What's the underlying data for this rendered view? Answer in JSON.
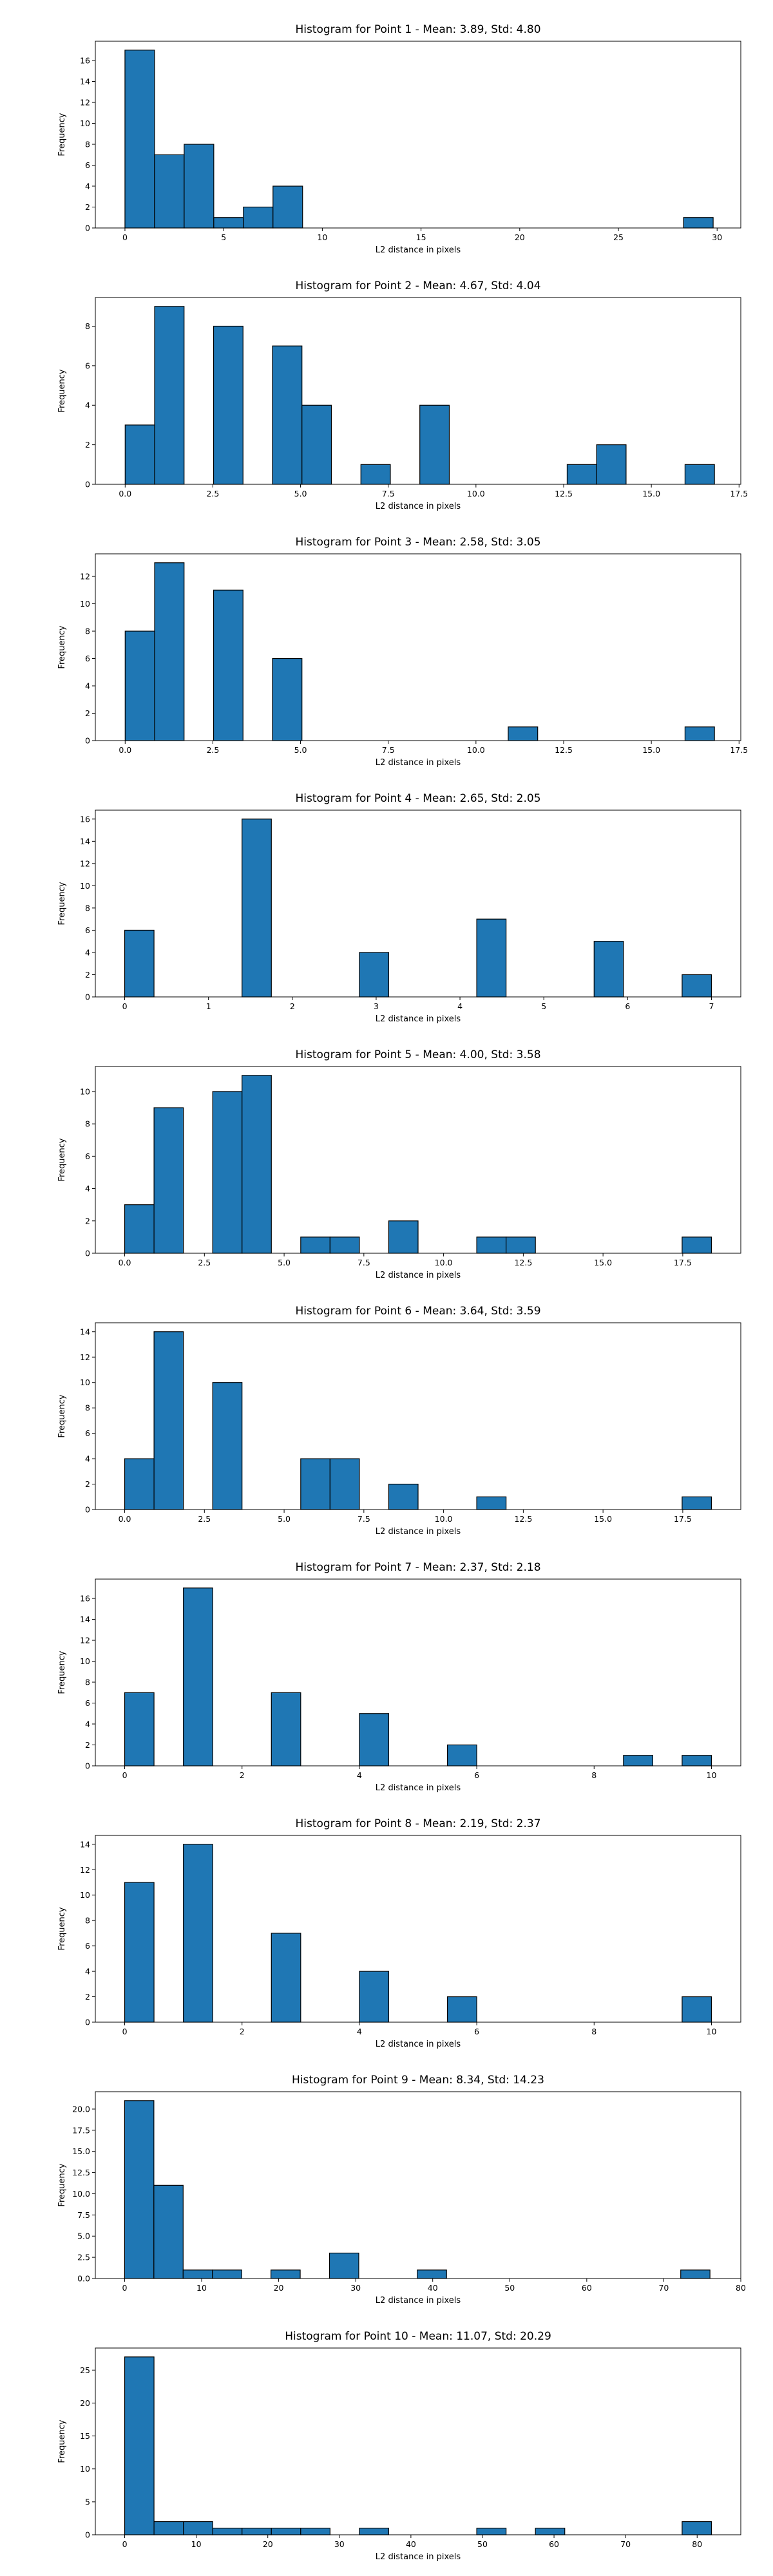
{
  "chart_data": [
    {
      "type": "bar",
      "title": "Histogram for Point 1 - Mean: 3.89, Std: 4.80",
      "xlabel": "L2 distance in pixels",
      "ylabel": "Frequency",
      "xlim": [
        -1.5,
        31.2
      ],
      "ylim": [
        0,
        17.85
      ],
      "xticks": [
        0,
        5,
        10,
        15,
        20,
        25,
        30
      ],
      "xtick_labels": [
        "0",
        "5",
        "10",
        "15",
        "20",
        "25",
        "30"
      ],
      "yticks": [
        0,
        2,
        4,
        6,
        8,
        10,
        12,
        14,
        16
      ],
      "ytick_labels": [
        "0",
        "2",
        "4",
        "6",
        "8",
        "10",
        "12",
        "14",
        "16"
      ],
      "bins": [
        {
          "x0": 0.0,
          "x1": 1.5,
          "count": 17
        },
        {
          "x0": 1.5,
          "x1": 3.0,
          "count": 7
        },
        {
          "x0": 3.0,
          "x1": 4.5,
          "count": 8
        },
        {
          "x0": 4.5,
          "x1": 6.0,
          "count": 1
        },
        {
          "x0": 6.0,
          "x1": 7.5,
          "count": 2
        },
        {
          "x0": 7.5,
          "x1": 9.0,
          "count": 4
        },
        {
          "x0": 28.3,
          "x1": 29.8,
          "count": 1
        }
      ]
    },
    {
      "type": "bar",
      "title": "Histogram for Point 2 - Mean: 4.67, Std: 4.04",
      "xlabel": "L2 distance in pixels",
      "ylabel": "Frequency",
      "xlim": [
        -0.85,
        17.55
      ],
      "ylim": [
        0,
        9.45
      ],
      "xticks": [
        0,
        2.5,
        5,
        7.5,
        10,
        12.5,
        15,
        17.5
      ],
      "xtick_labels": [
        "0.0",
        "2.5",
        "5.0",
        "7.5",
        "10.0",
        "12.5",
        "15.0",
        "17.5"
      ],
      "yticks": [
        0,
        2,
        4,
        6,
        8
      ],
      "ytick_labels": [
        "0",
        "2",
        "4",
        "6",
        "8"
      ],
      "bins": [
        {
          "x0": 0.0,
          "x1": 0.84,
          "count": 3
        },
        {
          "x0": 0.84,
          "x1": 1.68,
          "count": 9
        },
        {
          "x0": 2.52,
          "x1": 3.36,
          "count": 8
        },
        {
          "x0": 4.2,
          "x1": 5.04,
          "count": 7
        },
        {
          "x0": 5.04,
          "x1": 5.88,
          "count": 4
        },
        {
          "x0": 6.72,
          "x1": 7.56,
          "count": 1
        },
        {
          "x0": 8.4,
          "x1": 9.24,
          "count": 4
        },
        {
          "x0": 12.6,
          "x1": 13.44,
          "count": 1
        },
        {
          "x0": 13.44,
          "x1": 14.28,
          "count": 2
        },
        {
          "x0": 15.96,
          "x1": 16.8,
          "count": 1
        }
      ]
    },
    {
      "type": "bar",
      "title": "Histogram for Point 3 - Mean: 2.58, Std: 3.05",
      "xlabel": "L2 distance in pixels",
      "ylabel": "Frequency",
      "xlim": [
        -0.85,
        17.55
      ],
      "ylim": [
        0,
        13.65
      ],
      "xticks": [
        0,
        2.5,
        5,
        7.5,
        10,
        12.5,
        15,
        17.5
      ],
      "xtick_labels": [
        "0.0",
        "2.5",
        "5.0",
        "7.5",
        "10.0",
        "12.5",
        "15.0",
        "17.5"
      ],
      "yticks": [
        0,
        2,
        4,
        6,
        8,
        10,
        12
      ],
      "ytick_labels": [
        "0",
        "2",
        "4",
        "6",
        "8",
        "10",
        "12"
      ],
      "bins": [
        {
          "x0": 0.0,
          "x1": 0.84,
          "count": 8
        },
        {
          "x0": 0.84,
          "x1": 1.68,
          "count": 13
        },
        {
          "x0": 2.52,
          "x1": 3.36,
          "count": 11
        },
        {
          "x0": 4.2,
          "x1": 5.04,
          "count": 6
        },
        {
          "x0": 10.92,
          "x1": 11.76,
          "count": 1
        },
        {
          "x0": 15.96,
          "x1": 16.8,
          "count": 1
        }
      ]
    },
    {
      "type": "bar",
      "title": "Histogram for Point 4 - Mean: 2.65, Std: 2.05",
      "xlabel": "L2 distance in pixels",
      "ylabel": "Frequency",
      "xlim": [
        -0.35,
        7.35
      ],
      "ylim": [
        0,
        16.8
      ],
      "xticks": [
        0,
        1,
        2,
        3,
        4,
        5,
        6,
        7
      ],
      "xtick_labels": [
        "0",
        "1",
        "2",
        "3",
        "4",
        "5",
        "6",
        "7"
      ],
      "yticks": [
        0,
        2,
        4,
        6,
        8,
        10,
        12,
        14,
        16
      ],
      "ytick_labels": [
        "0",
        "2",
        "4",
        "6",
        "8",
        "10",
        "12",
        "14",
        "16"
      ],
      "bins": [
        {
          "x0": 0.0,
          "x1": 0.35,
          "count": 6
        },
        {
          "x0": 1.4,
          "x1": 1.75,
          "count": 16
        },
        {
          "x0": 2.8,
          "x1": 3.15,
          "count": 4
        },
        {
          "x0": 4.2,
          "x1": 4.55,
          "count": 7
        },
        {
          "x0": 5.6,
          "x1": 5.95,
          "count": 5
        },
        {
          "x0": 6.65,
          "x1": 7.0,
          "count": 2
        }
      ]
    },
    {
      "type": "bar",
      "title": "Histogram for Point 5 - Mean: 4.00, Std: 3.58",
      "xlabel": "L2 distance in pixels",
      "ylabel": "Frequency",
      "xlim": [
        -0.92,
        19.32
      ],
      "ylim": [
        0,
        11.55
      ],
      "xticks": [
        0,
        2.5,
        5,
        7.5,
        10,
        12.5,
        15,
        17.5
      ],
      "xtick_labels": [
        "0.0",
        "2.5",
        "5.0",
        "7.5",
        "10.0",
        "12.5",
        "15.0",
        "17.5"
      ],
      "yticks": [
        0,
        2,
        4,
        6,
        8,
        10
      ],
      "ytick_labels": [
        "0",
        "2",
        "4",
        "6",
        "8",
        "10"
      ],
      "bins": [
        {
          "x0": 0.0,
          "x1": 0.92,
          "count": 3
        },
        {
          "x0": 0.92,
          "x1": 1.84,
          "count": 9
        },
        {
          "x0": 2.76,
          "x1": 3.68,
          "count": 10
        },
        {
          "x0": 3.68,
          "x1": 4.6,
          "count": 11
        },
        {
          "x0": 5.52,
          "x1": 6.44,
          "count": 1
        },
        {
          "x0": 6.44,
          "x1": 7.36,
          "count": 1
        },
        {
          "x0": 8.28,
          "x1": 9.2,
          "count": 2
        },
        {
          "x0": 11.04,
          "x1": 11.96,
          "count": 1
        },
        {
          "x0": 11.96,
          "x1": 12.88,
          "count": 1
        },
        {
          "x0": 17.48,
          "x1": 18.4,
          "count": 1
        }
      ]
    },
    {
      "type": "bar",
      "title": "Histogram for Point 6 - Mean: 3.64, Std: 3.59",
      "xlabel": "L2 distance in pixels",
      "ylabel": "Frequency",
      "xlim": [
        -0.92,
        19.32
      ],
      "ylim": [
        0,
        14.7
      ],
      "xticks": [
        0,
        2.5,
        5,
        7.5,
        10,
        12.5,
        15,
        17.5
      ],
      "xtick_labels": [
        "0.0",
        "2.5",
        "5.0",
        "7.5",
        "10.0",
        "12.5",
        "15.0",
        "17.5"
      ],
      "yticks": [
        0,
        2,
        4,
        6,
        8,
        10,
        12,
        14
      ],
      "ytick_labels": [
        "0",
        "2",
        "4",
        "6",
        "8",
        "10",
        "12",
        "14"
      ],
      "bins": [
        {
          "x0": 0.0,
          "x1": 0.92,
          "count": 4
        },
        {
          "x0": 0.92,
          "x1": 1.84,
          "count": 14
        },
        {
          "x0": 2.76,
          "x1": 3.68,
          "count": 10
        },
        {
          "x0": 5.52,
          "x1": 6.44,
          "count": 4
        },
        {
          "x0": 6.44,
          "x1": 7.36,
          "count": 4
        },
        {
          "x0": 8.28,
          "x1": 9.2,
          "count": 2
        },
        {
          "x0": 11.04,
          "x1": 11.96,
          "count": 1
        },
        {
          "x0": 17.48,
          "x1": 18.4,
          "count": 1
        }
      ]
    },
    {
      "type": "bar",
      "title": "Histogram for Point 7 - Mean: 2.37, Std: 2.18",
      "xlabel": "L2 distance in pixels",
      "ylabel": "Frequency",
      "xlim": [
        -0.5,
        10.5
      ],
      "ylim": [
        0,
        17.85
      ],
      "xticks": [
        0,
        2,
        4,
        6,
        8,
        10
      ],
      "xtick_labels": [
        "0",
        "2",
        "4",
        "6",
        "8",
        "10"
      ],
      "yticks": [
        0,
        2,
        4,
        6,
        8,
        10,
        12,
        14,
        16
      ],
      "ytick_labels": [
        "0",
        "2",
        "4",
        "6",
        "8",
        "10",
        "12",
        "14",
        "16"
      ],
      "bins": [
        {
          "x0": 0.0,
          "x1": 0.5,
          "count": 7
        },
        {
          "x0": 1.0,
          "x1": 1.5,
          "count": 17
        },
        {
          "x0": 2.5,
          "x1": 3.0,
          "count": 7
        },
        {
          "x0": 4.0,
          "x1": 4.5,
          "count": 5
        },
        {
          "x0": 5.5,
          "x1": 6.0,
          "count": 2
        },
        {
          "x0": 8.5,
          "x1": 9.0,
          "count": 1
        },
        {
          "x0": 9.5,
          "x1": 10.0,
          "count": 1
        }
      ]
    },
    {
      "type": "bar",
      "title": "Histogram for Point 8 - Mean: 2.19, Std: 2.37",
      "xlabel": "L2 distance in pixels",
      "ylabel": "Frequency",
      "xlim": [
        -0.5,
        10.5
      ],
      "ylim": [
        0,
        14.7
      ],
      "xticks": [
        0,
        2,
        4,
        6,
        8,
        10
      ],
      "xtick_labels": [
        "0",
        "2",
        "4",
        "6",
        "8",
        "10"
      ],
      "yticks": [
        0,
        2,
        4,
        6,
        8,
        10,
        12,
        14
      ],
      "ytick_labels": [
        "0",
        "2",
        "4",
        "6",
        "8",
        "10",
        "12",
        "14"
      ],
      "bins": [
        {
          "x0": 0.0,
          "x1": 0.5,
          "count": 11
        },
        {
          "x0": 1.0,
          "x1": 1.5,
          "count": 14
        },
        {
          "x0": 2.5,
          "x1": 3.0,
          "count": 7
        },
        {
          "x0": 4.0,
          "x1": 4.5,
          "count": 4
        },
        {
          "x0": 5.5,
          "x1": 6.0,
          "count": 2
        },
        {
          "x0": 9.5,
          "x1": 10.0,
          "count": 2
        }
      ]
    },
    {
      "type": "bar",
      "title": "Histogram for Point 9 - Mean: 8.34, Std: 14.23",
      "xlabel": "L2 distance in pixels",
      "ylabel": "Frequency",
      "xlim": [
        -3.8,
        80.0
      ],
      "ylim": [
        0,
        22.05
      ],
      "xticks": [
        0,
        10,
        20,
        30,
        40,
        50,
        60,
        70,
        80
      ],
      "xtick_labels": [
        "0",
        "10",
        "20",
        "30",
        "40",
        "50",
        "60",
        "70",
        "80"
      ],
      "yticks": [
        0,
        2.5,
        5,
        7.5,
        10,
        12.5,
        15,
        17.5,
        20
      ],
      "ytick_labels": [
        "0.0",
        "2.5",
        "5.0",
        "7.5",
        "10.0",
        "12.5",
        "15.0",
        "17.5",
        "20.0"
      ],
      "bins": [
        {
          "x0": 0.0,
          "x1": 3.8,
          "count": 21
        },
        {
          "x0": 3.8,
          "x1": 7.6,
          "count": 11
        },
        {
          "x0": 7.6,
          "x1": 11.4,
          "count": 1
        },
        {
          "x0": 11.4,
          "x1": 15.2,
          "count": 1
        },
        {
          "x0": 19.0,
          "x1": 22.8,
          "count": 1
        },
        {
          "x0": 26.6,
          "x1": 30.4,
          "count": 3
        },
        {
          "x0": 38.0,
          "x1": 41.8,
          "count": 1
        },
        {
          "x0": 72.2,
          "x1": 76.0,
          "count": 1
        }
      ]
    },
    {
      "type": "bar",
      "title": "Histogram for Point 10 - Mean: 11.07, Std: 20.29",
      "xlabel": "L2 distance in pixels",
      "ylabel": "Frequency",
      "xlim": [
        -4.1,
        86.1
      ],
      "ylim": [
        0,
        28.35
      ],
      "xticks": [
        0,
        10,
        20,
        30,
        40,
        50,
        60,
        70,
        80
      ],
      "xtick_labels": [
        "0",
        "10",
        "20",
        "30",
        "40",
        "50",
        "60",
        "70",
        "80"
      ],
      "yticks": [
        0,
        5,
        10,
        15,
        20,
        25
      ],
      "ytick_labels": [
        "0",
        "5",
        "10",
        "15",
        "20",
        "25"
      ],
      "bins": [
        {
          "x0": 0.0,
          "x1": 4.1,
          "count": 27
        },
        {
          "x0": 4.1,
          "x1": 8.2,
          "count": 2
        },
        {
          "x0": 8.2,
          "x1": 12.3,
          "count": 2
        },
        {
          "x0": 12.3,
          "x1": 16.4,
          "count": 1
        },
        {
          "x0": 16.4,
          "x1": 20.5,
          "count": 1
        },
        {
          "x0": 20.5,
          "x1": 24.6,
          "count": 1
        },
        {
          "x0": 24.6,
          "x1": 28.7,
          "count": 1
        },
        {
          "x0": 32.8,
          "x1": 36.9,
          "count": 1
        },
        {
          "x0": 49.2,
          "x1": 53.3,
          "count": 1
        },
        {
          "x0": 57.4,
          "x1": 61.5,
          "count": 1
        },
        {
          "x0": 77.9,
          "x1": 82.0,
          "count": 2
        }
      ]
    }
  ]
}
